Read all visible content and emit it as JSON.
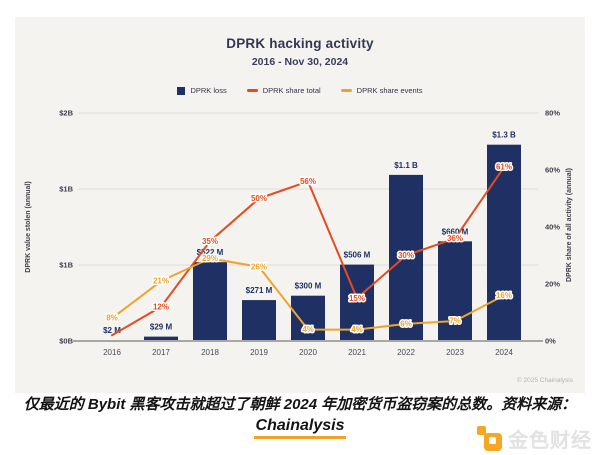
{
  "chart": {
    "title": "DPRK hacking activity",
    "subtitle": "2016 - Nov 30, 2024",
    "copyright": "© 2025 Chainalysis",
    "legend": [
      {
        "label": "DPRK loss",
        "color": "#1f3164",
        "type": "square"
      },
      {
        "label": "DPRK share total",
        "color": "#e64b1e",
        "type": "dash"
      },
      {
        "label": "DPRK share events",
        "color": "#f0a32c",
        "type": "dash"
      }
    ]
  },
  "chart_data": {
    "type": "bar",
    "title": "DPRK hacking activity",
    "subtitle": "2016 - Nov 30, 2024",
    "categories": [
      "2016",
      "2017",
      "2018",
      "2019",
      "2020",
      "2021",
      "2022",
      "2023",
      "2024"
    ],
    "series": [
      {
        "name": "DPRK loss",
        "type": "bar",
        "unit": "USD millions",
        "values": [
          2,
          29,
          522,
          271,
          300,
          506,
          1100,
          660,
          1300
        ],
        "labels": [
          "$2 M",
          "$29 M",
          "$522 M",
          "$271 M",
          "$300 M",
          "$506 M",
          "$1.1 B",
          "$660 M",
          "$1.3 B"
        ],
        "color": "#1f3164"
      },
      {
        "name": "DPRK share total",
        "type": "line",
        "unit": "%",
        "values": [
          2,
          12,
          35,
          50,
          56,
          15,
          30,
          36,
          61
        ],
        "labels": [
          "",
          "12%",
          "35%",
          "50%",
          "56%",
          "15%",
          "30%",
          "36%",
          "61%"
        ],
        "color": "#e64b1e"
      },
      {
        "name": "DPRK share events",
        "type": "line",
        "unit": "%",
        "values": [
          8,
          21,
          29,
          26,
          4,
          4,
          6,
          7,
          16
        ],
        "labels": [
          "8%",
          "21%",
          "29%",
          "26%",
          "4%",
          "4%",
          "6%",
          "7%",
          "16%"
        ],
        "color": "#f0a32c"
      }
    ],
    "left_axis": {
      "title": "DPRK value stolen (annual)",
      "tick_labels": [
        "$2B",
        "$1B",
        "$1B",
        "$0B"
      ],
      "range_busd": [
        0,
        2
      ]
    },
    "right_axis": {
      "title": "DPRK share of all activity (annual)",
      "tick_labels": [
        "80%",
        "60%",
        "40%",
        "20%",
        "0%"
      ],
      "range_pct": [
        0,
        80
      ]
    },
    "grid": "horizontal gridlines at left-axis ticks only",
    "legend_position": "top center"
  },
  "footer": {
    "caption_line1": "仅最近的 Bybit 黑客攻击就超过了朝鲜 2024 年加密货币盗窃案的总数。资料来源：",
    "caption_line2": "Chainalysis",
    "logo_text": "金色财经",
    "logo_color": "#f5a623"
  }
}
